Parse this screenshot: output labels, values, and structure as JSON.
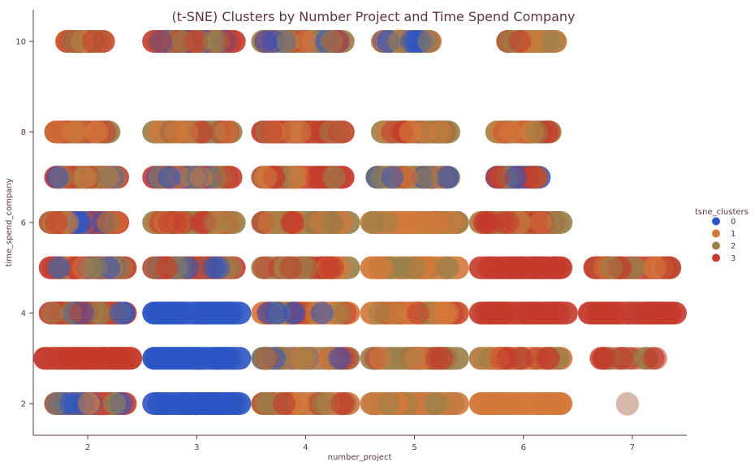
{
  "chart_data": {
    "type": "scatter",
    "title": "(t-SNE) Clusters by Number Project and Time Spend Company",
    "xlabel": "number_project",
    "ylabel": "time_spend_company",
    "xlim": [
      1.5,
      7.5
    ],
    "ylim": [
      1.3,
      10.7
    ],
    "x_ticks": [
      2,
      3,
      4,
      5,
      6,
      7
    ],
    "y_ticks": [
      2,
      4,
      6,
      8,
      10
    ],
    "x_jitter": 0.5,
    "marker_alpha": 0.22,
    "text_color": "#5c3545",
    "ghost_color": "#d9b8ac",
    "grid": false,
    "legend": {
      "title": "tsne_clusters",
      "position": "right",
      "entries": [
        {
          "name": "0",
          "color": "#2c55c4"
        },
        {
          "name": "1",
          "color": "#d4783a"
        },
        {
          "name": "2",
          "color": "#99804a"
        },
        {
          "name": "3",
          "color": "#c43b2c"
        }
      ]
    },
    "cells": [
      {
        "x": 2,
        "y": 2,
        "clusters": [
          3,
          0,
          2,
          1
        ],
        "range": [
          1.6,
          2.45
        ],
        "dominant": 3
      },
      {
        "x": 2,
        "y": 3,
        "clusters": [
          3
        ],
        "range": [
          1.5,
          2.5
        ],
        "dominant": 3
      },
      {
        "x": 2,
        "y": 4,
        "clusters": [
          3,
          0,
          2
        ],
        "range": [
          1.55,
          2.45
        ],
        "dominant": 3
      },
      {
        "x": 2,
        "y": 5,
        "clusters": [
          3,
          0,
          2,
          1
        ],
        "range": [
          1.55,
          2.45
        ],
        "dominant": 3
      },
      {
        "x": 2,
        "y": 6,
        "clusters": [
          3,
          2,
          1,
          0
        ],
        "range": [
          1.55,
          2.38
        ],
        "dominant": 3
      },
      {
        "x": 2,
        "y": 7,
        "clusters": [
          3,
          2,
          0,
          1
        ],
        "range": [
          1.6,
          2.38
        ],
        "dominant": 3
      },
      {
        "x": 2,
        "y": 8,
        "clusters": [
          2,
          1,
          3
        ],
        "range": [
          1.6,
          2.3
        ],
        "dominant": 2
      },
      {
        "x": 2,
        "y": 10,
        "clusters": [
          2,
          1,
          3
        ],
        "range": [
          1.7,
          2.25
        ],
        "dominant": 1
      },
      {
        "x": 3,
        "y": 2,
        "clusters": [
          0
        ],
        "range": [
          2.5,
          3.5
        ],
        "dominant": 0
      },
      {
        "x": 3,
        "y": 3,
        "clusters": [
          0
        ],
        "range": [
          2.5,
          3.5
        ],
        "dominant": 0
      },
      {
        "x": 3,
        "y": 4,
        "clusters": [
          0
        ],
        "range": [
          2.5,
          3.5
        ],
        "dominant": 0
      },
      {
        "x": 3,
        "y": 5,
        "clusters": [
          3,
          0,
          2
        ],
        "range": [
          2.5,
          3.45
        ],
        "dominant": 3
      },
      {
        "x": 3,
        "y": 6,
        "clusters": [
          2,
          3,
          1
        ],
        "range": [
          2.5,
          3.45
        ],
        "dominant": 2
      },
      {
        "x": 3,
        "y": 7,
        "clusters": [
          3,
          2,
          0,
          1
        ],
        "range": [
          2.5,
          3.42
        ],
        "dominant": 3
      },
      {
        "x": 3,
        "y": 8,
        "clusters": [
          2,
          3,
          1
        ],
        "range": [
          2.5,
          3.42
        ],
        "dominant": 2
      },
      {
        "x": 3,
        "y": 10,
        "clusters": [
          3,
          0,
          2
        ],
        "range": [
          2.5,
          3.45
        ],
        "dominant": 3
      },
      {
        "x": 4,
        "y": 2,
        "clusters": [
          1,
          2,
          3
        ],
        "range": [
          3.5,
          4.5
        ],
        "dominant": 1
      },
      {
        "x": 4,
        "y": 3,
        "clusters": [
          2,
          1,
          0,
          3
        ],
        "range": [
          3.5,
          4.5
        ],
        "dominant": 2
      },
      {
        "x": 4,
        "y": 4,
        "clusters": [
          1,
          2,
          3,
          0
        ],
        "range": [
          3.5,
          4.5
        ],
        "dominant": 1
      },
      {
        "x": 4,
        "y": 5,
        "clusters": [
          2,
          1,
          3
        ],
        "range": [
          3.5,
          4.5
        ],
        "dominant": 2
      },
      {
        "x": 4,
        "y": 6,
        "clusters": [
          2,
          1,
          3
        ],
        "range": [
          3.5,
          4.5
        ],
        "dominant": 2
      },
      {
        "x": 4,
        "y": 7,
        "clusters": [
          3,
          2,
          1
        ],
        "range": [
          3.5,
          4.45
        ],
        "dominant": 3
      },
      {
        "x": 4,
        "y": 8,
        "clusters": [
          3,
          2,
          1
        ],
        "range": [
          3.5,
          4.45
        ],
        "dominant": 3
      },
      {
        "x": 4,
        "y": 10,
        "clusters": [
          2,
          3,
          0,
          1
        ],
        "range": [
          3.5,
          4.45
        ],
        "dominant": 2
      },
      {
        "x": 5,
        "y": 2,
        "clusters": [
          1,
          2
        ],
        "range": [
          4.5,
          5.5
        ],
        "dominant": 1
      },
      {
        "x": 5,
        "y": 3,
        "clusters": [
          2,
          1,
          3
        ],
        "range": [
          4.5,
          5.5
        ],
        "dominant": 2
      },
      {
        "x": 5,
        "y": 4,
        "clusters": [
          1,
          3,
          2
        ],
        "range": [
          4.5,
          5.5
        ],
        "dominant": 1
      },
      {
        "x": 5,
        "y": 5,
        "clusters": [
          1,
          2
        ],
        "range": [
          4.5,
          5.5
        ],
        "dominant": 1
      },
      {
        "x": 5,
        "y": 6,
        "clusters": [
          1,
          2
        ],
        "range": [
          4.5,
          5.5
        ],
        "dominant": 1
      },
      {
        "x": 5,
        "y": 7,
        "clusters": [
          2,
          3,
          0,
          1
        ],
        "range": [
          4.55,
          5.42
        ],
        "dominant": 2
      },
      {
        "x": 5,
        "y": 8,
        "clusters": [
          2,
          1,
          3
        ],
        "range": [
          4.6,
          5.42
        ],
        "dominant": 2
      },
      {
        "x": 5,
        "y": 10,
        "clusters": [
          1,
          2,
          0
        ],
        "range": [
          4.6,
          5.25
        ],
        "dominant": 1
      },
      {
        "x": 6,
        "y": 2,
        "clusters": [
          1
        ],
        "range": [
          5.5,
          6.45
        ],
        "dominant": 1
      },
      {
        "x": 6,
        "y": 3,
        "clusters": [
          1,
          2,
          3
        ],
        "range": [
          5.5,
          6.45
        ],
        "dominant": 1
      },
      {
        "x": 6,
        "y": 4,
        "clusters": [
          3
        ],
        "range": [
          5.5,
          6.5
        ],
        "dominant": 3
      },
      {
        "x": 6,
        "y": 5,
        "clusters": [
          3
        ],
        "range": [
          5.5,
          6.45
        ],
        "dominant": 3
      },
      {
        "x": 6,
        "y": 6,
        "clusters": [
          2,
          1,
          3
        ],
        "range": [
          5.5,
          6.45
        ],
        "dominant": 2
      },
      {
        "x": 6,
        "y": 7,
        "clusters": [
          0,
          2,
          3
        ],
        "range": [
          5.65,
          6.25
        ],
        "dominant": 0
      },
      {
        "x": 6,
        "y": 8,
        "clusters": [
          2,
          1,
          3
        ],
        "range": [
          5.65,
          6.35
        ],
        "dominant": 2
      },
      {
        "x": 6,
        "y": 10,
        "clusters": [
          1,
          2,
          3
        ],
        "range": [
          5.75,
          6.4
        ],
        "dominant": 1
      },
      {
        "x": 7,
        "y": 2,
        "clusters": [],
        "range": [
          6.85,
          6.9
        ],
        "dominant": -1
      },
      {
        "x": 7,
        "y": 3,
        "clusters": [
          2,
          3
        ],
        "range": [
          6.6,
          7.35
        ],
        "dominant": -1
      },
      {
        "x": 7,
        "y": 4,
        "clusters": [
          3
        ],
        "range": [
          6.5,
          7.5
        ],
        "dominant": 3
      },
      {
        "x": 7,
        "y": 5,
        "clusters": [
          3,
          1,
          2
        ],
        "range": [
          6.55,
          7.45
        ],
        "dominant": 3
      }
    ]
  }
}
